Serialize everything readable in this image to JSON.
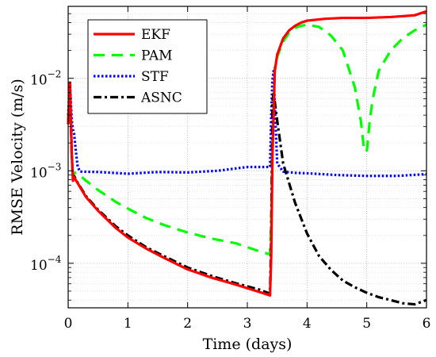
{
  "chart_data": {
    "type": "line",
    "xlabel": "Time (days)",
    "ylabel": "RMSE Velocity (m/s)",
    "xlim": [
      0,
      6
    ],
    "ylim": [
      3.3e-05,
      0.06
    ],
    "yscale": "log",
    "grid": "major-and-minor",
    "legend_position": "top-left",
    "x_ticks": [
      0,
      1,
      2,
      3,
      4,
      5,
      6
    ],
    "x_tick_labels": [
      "0",
      "1",
      "2",
      "3",
      "4",
      "5",
      "6"
    ],
    "y_ticks": [
      0.0001,
      0.001,
      0.01
    ],
    "y_tick_labels": [
      {
        "base": "10",
        "exp": "−4"
      },
      {
        "base": "10",
        "exp": "−3"
      },
      {
        "base": "10",
        "exp": "−2"
      }
    ],
    "series": [
      {
        "name": "EKF",
        "color": "#ff0000",
        "dash": "solid",
        "x": [
          0,
          0.03,
          0.06,
          0.08,
          0.1,
          0.15,
          0.3,
          0.5,
          0.8,
          1.0,
          1.3,
          1.6,
          2.0,
          2.4,
          2.8,
          3.2,
          3.38,
          3.4,
          3.42,
          3.46,
          3.5,
          3.6,
          3.7,
          3.8,
          3.9,
          4.0,
          4.3,
          4.6,
          5.0,
          5.4,
          5.8,
          6.0
        ],
        "y": [
          0.0032,
          0.009,
          0.0015,
          0.00078,
          0.00085,
          0.00075,
          0.00052,
          0.00037,
          0.00024,
          0.00019,
          0.000145,
          0.000115,
          8.6e-05,
          7e-05,
          5.9e-05,
          4.9e-05,
          4.5e-05,
          0.00012,
          0.0014,
          0.012,
          0.018,
          0.027,
          0.033,
          0.037,
          0.04,
          0.042,
          0.044,
          0.045,
          0.045,
          0.046,
          0.048,
          0.053
        ]
      },
      {
        "name": "PAM",
        "color": "#00ff00",
        "dash": "dashed",
        "x": [
          0,
          0.03,
          0.06,
          0.08,
          0.1,
          0.15,
          0.3,
          0.5,
          0.8,
          1.0,
          1.3,
          1.6,
          2.0,
          2.4,
          2.8,
          3.2,
          3.38,
          3.4,
          3.42,
          3.46,
          3.5,
          3.6,
          3.7,
          3.8,
          3.9,
          4.0,
          4.2,
          4.4,
          4.6,
          4.8,
          4.9,
          4.95,
          5.0,
          5.05,
          5.1,
          5.2,
          5.4,
          5.6,
          5.8,
          6.0
        ],
        "y": [
          0.0032,
          0.009,
          0.0016,
          0.0009,
          0.00095,
          0.00095,
          0.00078,
          0.00062,
          0.00046,
          0.00039,
          0.00031,
          0.00026,
          0.000215,
          0.000185,
          0.000165,
          0.000135,
          0.000125,
          0.0003,
          0.002,
          0.013,
          0.017,
          0.025,
          0.031,
          0.035,
          0.037,
          0.038,
          0.036,
          0.029,
          0.02,
          0.008,
          0.0035,
          0.0018,
          0.0016,
          0.0035,
          0.006,
          0.012,
          0.02,
          0.027,
          0.033,
          0.038
        ]
      },
      {
        "name": "STF",
        "color": "#0000ff",
        "dash": "dotted",
        "x": [
          0,
          0.03,
          0.06,
          0.08,
          0.1,
          0.13,
          0.16,
          0.2,
          0.5,
          1.0,
          1.5,
          2.0,
          2.5,
          3.0,
          3.38,
          3.4,
          3.42,
          3.44,
          3.46,
          3.5,
          3.6,
          3.8,
          4.0,
          4.5,
          5.0,
          5.5,
          6.0
        ],
        "y": [
          0.004,
          0.009,
          0.0035,
          0.0028,
          0.0025,
          0.0016,
          0.0011,
          0.00098,
          0.00097,
          0.00093,
          0.00097,
          0.00096,
          0.001,
          0.0011,
          0.0011,
          0.004,
          0.0095,
          0.012,
          0.005,
          0.0012,
          0.00098,
          0.00095,
          0.00094,
          0.0009,
          0.00088,
          0.00088,
          0.00092
        ]
      },
      {
        "name": "ASNC",
        "color": "#000000",
        "dash": "dashdot",
        "x": [
          0,
          0.03,
          0.06,
          0.08,
          0.1,
          0.15,
          0.3,
          0.5,
          0.8,
          1.0,
          1.3,
          1.6,
          2.0,
          2.4,
          2.8,
          3.2,
          3.38,
          3.4,
          3.42,
          3.44,
          3.5,
          3.6,
          3.8,
          4.0,
          4.2,
          4.4,
          4.6,
          4.8,
          5.0,
          5.2,
          5.4,
          5.6,
          5.8,
          6.0
        ],
        "y": [
          0.0032,
          0.0085,
          0.0015,
          0.0008,
          0.00088,
          0.00076,
          0.00053,
          0.00038,
          0.00025,
          0.0002,
          0.00015,
          0.00012,
          9e-05,
          7.3e-05,
          6.1e-05,
          5.2e-05,
          4.7e-05,
          0.0002,
          0.0055,
          0.007,
          0.0035,
          0.0012,
          0.00045,
          0.00021,
          0.00012,
          8.5e-05,
          6.5e-05,
          5.5e-05,
          4.8e-05,
          4.3e-05,
          4e-05,
          3.7e-05,
          3.6e-05,
          4e-05
        ]
      }
    ]
  }
}
